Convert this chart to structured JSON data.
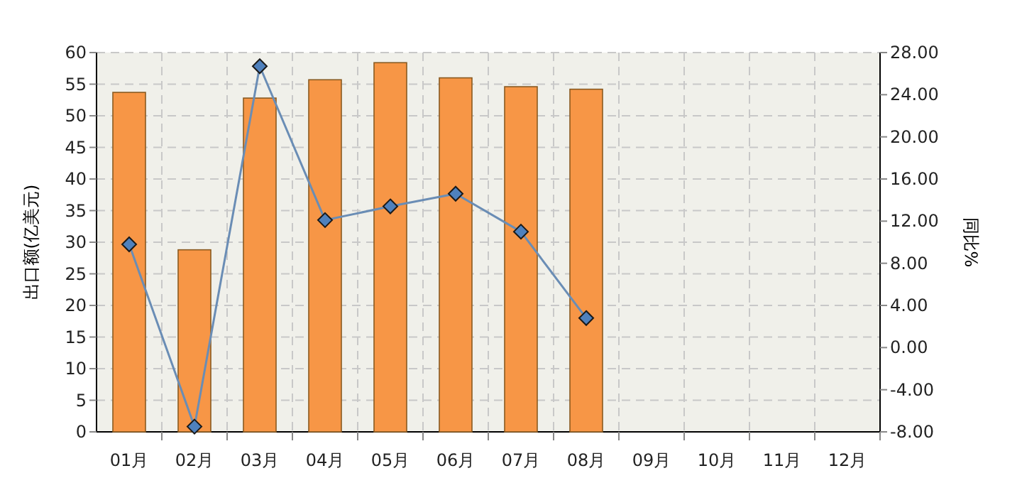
{
  "chart_data": {
    "type": "bar",
    "ylabel": "出口额(亿美元)",
    "y2label": "同比%",
    "categories": [
      "01月",
      "02月",
      "03月",
      "04月",
      "05月",
      "06月",
      "07月",
      "08月",
      "09月",
      "10月",
      "11月",
      "12月"
    ],
    "series": [
      {
        "color": "#f79646",
        "values": [
          53.7,
          28.8,
          52.8,
          55.7,
          58.4,
          56,
          54.6,
          54.2,
          null,
          null,
          null,
          null
        ]
      },
      {
        "type": "line",
        "axis": "y2",
        "color": "#6a8db5",
        "marker": "diamond",
        "values": [
          9.8,
          -7.5,
          26.7,
          12.1,
          13.4,
          14.6,
          11.0,
          2.8,
          null,
          null,
          null,
          null
        ]
      }
    ],
    "ylim": [
      0,
      60
    ],
    "yticks": [
      0,
      5,
      10,
      15,
      20,
      25,
      30,
      35,
      40,
      45,
      50,
      55,
      60
    ],
    "y2lim": [
      -8,
      28
    ],
    "y2ticks": [
      {
        "value": -8,
        "label": "-8.00"
      },
      {
        "value": -4,
        "label": "-4.00"
      },
      {
        "value": 0,
        "label": "0.00"
      },
      {
        "value": 4,
        "label": "4.00"
      },
      {
        "value": 8,
        "label": "8.00"
      },
      {
        "value": 12,
        "label": "12.00"
      },
      {
        "value": 16,
        "label": "16.00"
      },
      {
        "value": 20,
        "label": "20.00"
      },
      {
        "value": 24,
        "label": "24.00"
      },
      {
        "value": 28,
        "label": "28.00"
      }
    ],
    "grid": true
  }
}
